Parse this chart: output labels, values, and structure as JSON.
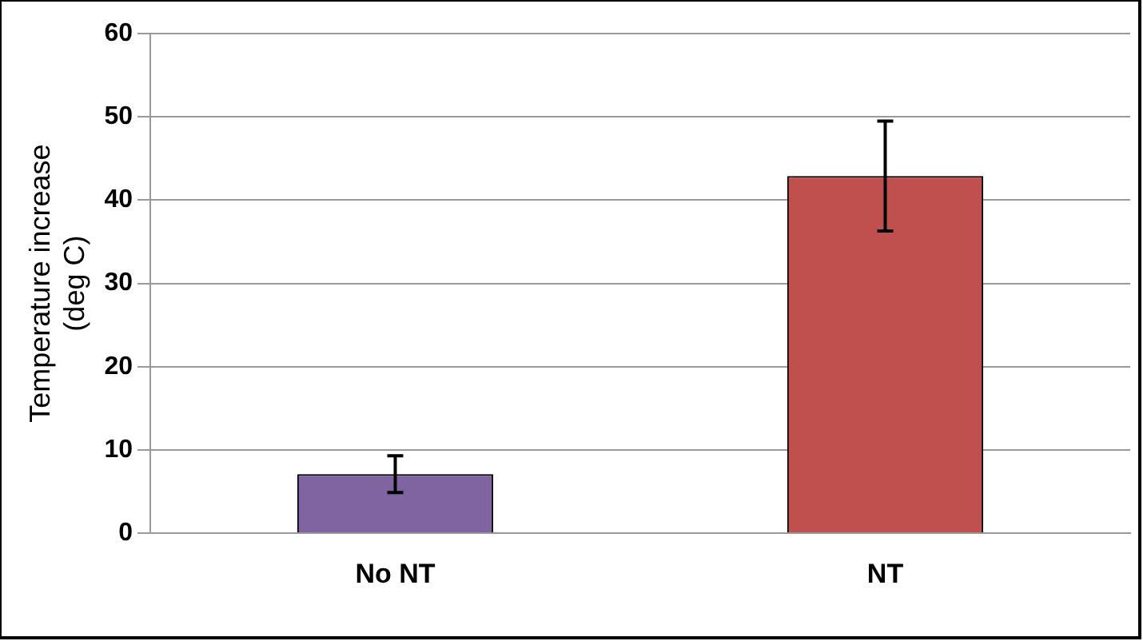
{
  "chart_data": {
    "type": "bar",
    "ylabel": "Temperature increase\n(deg C)",
    "categories": [
      "No NT",
      "NT"
    ],
    "values": [
      7.1,
      42.9
    ],
    "colors": [
      "#8064a2",
      "#c0504d"
    ],
    "errors": [
      2.2,
      6.6
    ],
    "ylim": [
      0,
      60
    ],
    "yticks": [
      0,
      10,
      20,
      30,
      40,
      50,
      60
    ],
    "grid": "y",
    "legend": false
  }
}
